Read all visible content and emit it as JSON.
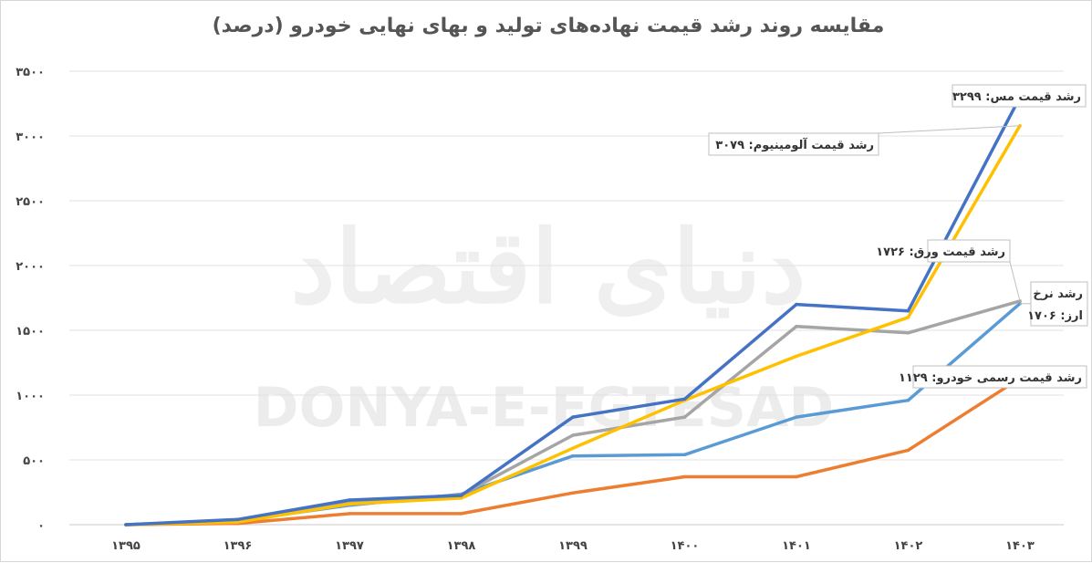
{
  "chart_data": {
    "type": "line",
    "title": "مقایسه روند رشد قیمت نهاده‌های تولید و بهای نهایی خودرو (درصد)",
    "categories": [
      "۱۳۹۵",
      "۱۳۹۶",
      "۱۳۹۷",
      "۱۳۹۸",
      "۱۳۹۹",
      "۱۴۰۰",
      "۱۴۰۱",
      "۱۴۰۲",
      "۱۴۰۳"
    ],
    "ylim": [
      0,
      3500
    ],
    "yticks": [
      0,
      500,
      1000,
      1500,
      2000,
      2500,
      3000,
      3500
    ],
    "ytick_labels": [
      "۰",
      "۵۰۰",
      "۱۰۰۰",
      "۱۵۰۰",
      "۲۰۰۰",
      "۲۵۰۰",
      "۳۰۰۰",
      "۳۵۰۰"
    ],
    "grid": "horizontal",
    "series": [
      {
        "key": "car",
        "color": "#ED7D31",
        "values": [
          0,
          10,
          85,
          85,
          245,
          370,
          370,
          575,
          1129
        ]
      },
      {
        "key": "fx",
        "color": "#5B9BD5",
        "values": [
          0,
          30,
          150,
          235,
          530,
          540,
          830,
          960,
          1706
        ]
      },
      {
        "key": "sheet",
        "color": "#A5A5A5",
        "values": [
          0,
          25,
          170,
          230,
          690,
          830,
          1530,
          1480,
          1726
        ]
      },
      {
        "key": "alum",
        "color": "#FFC000",
        "values": [
          0,
          20,
          160,
          205,
          590,
          960,
          1300,
          1600,
          3079
        ]
      },
      {
        "key": "copper",
        "color": "#4472C4",
        "values": [
          0,
          40,
          190,
          225,
          830,
          970,
          1700,
          1650,
          3299
        ]
      }
    ],
    "annotations": [
      {
        "key": "copper",
        "lines": [
          "رشد قیمت مس: ۳۲۹۹"
        ]
      },
      {
        "key": "alum",
        "lines": [
          "رشد قیمت آلومینیوم: ۳۰۷۹"
        ]
      },
      {
        "key": "sheet",
        "lines": [
          "رشد قیمت ورق: ۱۷۲۶"
        ]
      },
      {
        "key": "fx",
        "lines": [
          "رشد نرخ",
          "ارز: ۱۷۰۶"
        ]
      },
      {
        "key": "car",
        "lines": [
          "رشد قیمت رسمی خودرو: ۱۱۲۹"
        ]
      }
    ]
  },
  "watermark": {
    "latin": "DONYA-E-EGTESAD",
    "persian": "دنیای اقتصاد"
  }
}
